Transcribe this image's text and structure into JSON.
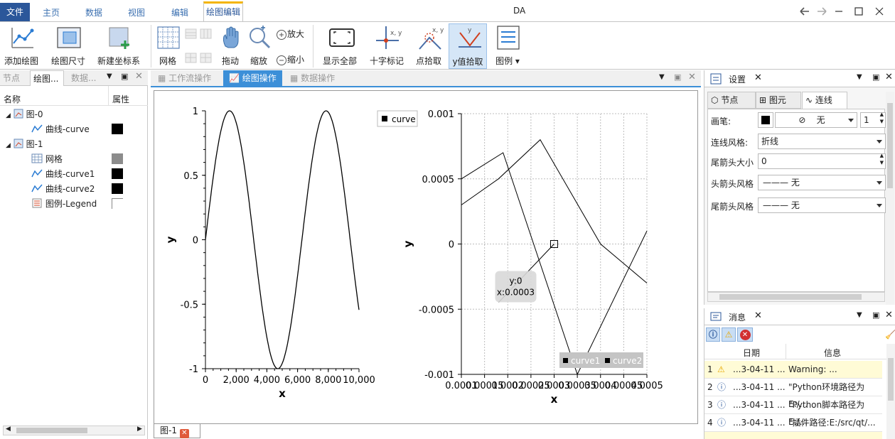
{
  "window": {
    "title": "DA"
  },
  "menu_tabs": [
    "文件",
    "主页",
    "数据",
    "视图",
    "编辑",
    "绘图编辑"
  ],
  "ribbon": {
    "add_plot": "添加绘图",
    "plot_size": "绘图尺寸",
    "new_axes": "新建坐标系",
    "grid": "网格",
    "pan": "拖动",
    "zoom": "缩放",
    "zoom_in": "放大",
    "zoom_out": "缩小",
    "show_all": "显示全部",
    "crosshair": "十字标记",
    "pick_point": "点拾取",
    "pick_y": "y值拾取",
    "legend": "图例",
    "crosshair_icon_text": "x, y",
    "pick_icon_text": "x, y",
    "pick_y_icon_text": "y"
  },
  "left_panel": {
    "tabs": [
      "节点",
      "绘图...",
      "数据..."
    ],
    "columns": [
      "名称",
      "属性"
    ],
    "tree": [
      {
        "label": "图-0",
        "level": 0,
        "swatch": ""
      },
      {
        "label": "曲线-curve",
        "level": 1,
        "swatch": "#000000"
      },
      {
        "label": "图-1",
        "level": 0,
        "swatch": ""
      },
      {
        "label": "网格",
        "level": 1,
        "swatch": "#8c8c8c"
      },
      {
        "label": "曲线-curve1",
        "level": 1,
        "swatch": "#000000"
      },
      {
        "label": "曲线-curve2",
        "level": 1,
        "swatch": "#000000"
      },
      {
        "label": "图例-Legend",
        "level": 1,
        "swatch": "none"
      }
    ]
  },
  "center": {
    "tabs": [
      "工作流操作",
      "绘图操作",
      "数据操作"
    ],
    "bottom_tab": "图-1",
    "legend_left": "curve",
    "legend_right": [
      "curve1",
      "curve2"
    ],
    "tooltip": [
      "y:0",
      "x:0.0003"
    ]
  },
  "chart_data": [
    {
      "type": "line",
      "title": "",
      "xlabel": "x",
      "ylabel": "y",
      "xlim": [
        0,
        10000
      ],
      "ylim": [
        -1,
        1
      ],
      "xticks": [
        "0",
        "2,000",
        "4,000",
        "6,000",
        "8,000",
        "10,000"
      ],
      "yticks": [
        "1",
        "0.5",
        "0",
        "-0.5",
        "-1"
      ],
      "series": [
        {
          "name": "curve",
          "function": "sin(x/1000)",
          "x": [
            0,
            10000
          ]
        }
      ],
      "grid": false,
      "legend": "top-right"
    },
    {
      "type": "line",
      "title": "",
      "xlabel": "x",
      "ylabel": "y",
      "xlim": [
        0.0001,
        0.0005
      ],
      "ylim": [
        -0.001,
        0.001
      ],
      "xticks": [
        "0.0001",
        "0.00015",
        "0.0002",
        "0.00025",
        "0.0003",
        "0.00035",
        "0.0004",
        "0.00045",
        "0.0005"
      ],
      "yticks": [
        "0.001",
        "0.0005",
        "0",
        "-0.0005",
        "-0.001"
      ],
      "series": [
        {
          "name": "curve1",
          "x": [
            0.0001,
            0.00019,
            0.00035,
            0.0005
          ],
          "y": [
            0.0005,
            0.0007,
            -0.001,
            0.0001
          ]
        },
        {
          "name": "curve2",
          "x": [
            0.0001,
            0.00018,
            0.00027,
            0.0004,
            0.0005
          ],
          "y": [
            0.0003,
            0.0005,
            0.0008,
            0.0,
            -0.0003
          ]
        }
      ],
      "grid": true,
      "legend": "bottom-right"
    }
  ],
  "settings": {
    "title": "设置",
    "tabs": [
      "节点",
      "图元",
      "连线"
    ],
    "pen_label": "画笔:",
    "pen_style": "无",
    "pen_width": "1",
    "line_style_label": "连线风格:",
    "line_style": "折线",
    "tail_size_label": "尾箭头大小",
    "tail_size": "0",
    "head_style_label": "头箭头风格",
    "head_style": "无",
    "tail_style_label": "尾箭头风格",
    "tail_style": "无"
  },
  "messages": {
    "title": "消息",
    "columns": [
      "日期",
      "信息"
    ],
    "rows": [
      {
        "n": "1",
        "date": "...3-04-11 ...",
        "info": "Warning: ...",
        "type": "warning"
      },
      {
        "n": "2",
        "date": "...3-04-11 ...",
        "info": "\"Python环境路径为E:/...",
        "type": "info"
      },
      {
        "n": "3",
        "date": "...3-04-11 ...",
        "info": "\"Python脚本路径为E:/...",
        "type": "info"
      },
      {
        "n": "4",
        "date": "...3-04-11 ...",
        "info": "\"插件路径:E:/src/qt/...",
        "type": "info"
      }
    ]
  },
  "colors": {
    "accent": "#2b579a",
    "active_tab": "#3c8fd8",
    "warning_row": "#fffbd6"
  }
}
